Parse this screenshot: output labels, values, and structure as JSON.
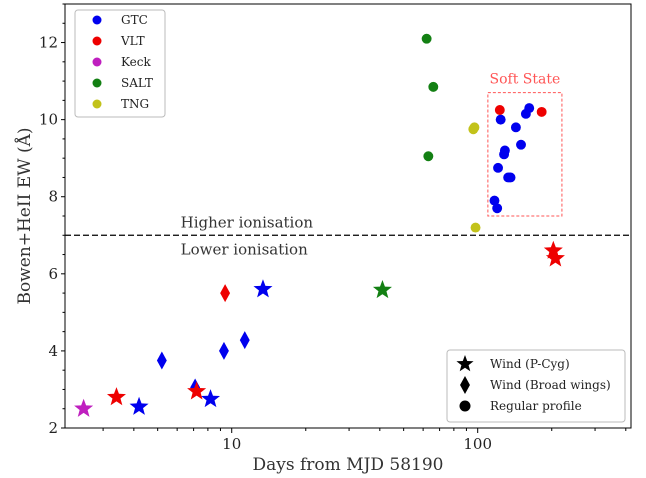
{
  "chart_data": {
    "type": "scatter",
    "xlabel": "Days from MJD 58190",
    "ylabel": "Bowen+HeII EW (Å)",
    "x_scale": "log",
    "xlim": [
      2.1,
      420
    ],
    "ylim": [
      2,
      13
    ],
    "x_ticks": [
      {
        "value": 10,
        "label": "10"
      },
      {
        "value": 100,
        "label": "100"
      }
    ],
    "y_ticks": [
      {
        "value": 2,
        "label": "2"
      },
      {
        "value": 4,
        "label": "4"
      },
      {
        "value": 6,
        "label": "6"
      },
      {
        "value": 8,
        "label": "8"
      },
      {
        "value": 10,
        "label": "10"
      },
      {
        "value": 12,
        "label": "12"
      }
    ],
    "grid": false,
    "colors": {
      "GTC": "#0000ee",
      "VLT": "#ee0000",
      "Keck": "#bf1fbf",
      "SALT": "#138013",
      "TNG": "#c2c21a"
    },
    "series": [
      {
        "name": "GTC",
        "points": [
          {
            "x": 4.2,
            "y": 2.55,
            "marker": "star"
          },
          {
            "x": 5.2,
            "y": 3.75,
            "marker": "diamond"
          },
          {
            "x": 7.1,
            "y": 3.05,
            "marker": "diamond"
          },
          {
            "x": 8.2,
            "y": 2.75,
            "marker": "star"
          },
          {
            "x": 9.3,
            "y": 4.0,
            "marker": "diamond"
          },
          {
            "x": 11.3,
            "y": 4.28,
            "marker": "diamond"
          },
          {
            "x": 13.4,
            "y": 5.6,
            "marker": "star"
          },
          {
            "x": 117,
            "y": 7.9,
            "marker": "circle"
          },
          {
            "x": 120,
            "y": 7.7,
            "marker": "circle"
          },
          {
            "x": 121,
            "y": 8.75,
            "marker": "circle"
          },
          {
            "x": 124,
            "y": 10.0,
            "marker": "circle"
          },
          {
            "x": 128,
            "y": 9.1,
            "marker": "circle"
          },
          {
            "x": 129,
            "y": 9.2,
            "marker": "circle"
          },
          {
            "x": 133,
            "y": 8.5,
            "marker": "circle"
          },
          {
            "x": 136,
            "y": 8.5,
            "marker": "circle"
          },
          {
            "x": 143,
            "y": 9.8,
            "marker": "circle"
          },
          {
            "x": 150,
            "y": 9.35,
            "marker": "circle"
          },
          {
            "x": 157,
            "y": 10.15,
            "marker": "circle"
          },
          {
            "x": 162,
            "y": 10.3,
            "marker": "circle"
          }
        ]
      },
      {
        "name": "VLT",
        "points": [
          {
            "x": 3.4,
            "y": 2.8,
            "marker": "star"
          },
          {
            "x": 7.2,
            "y": 2.95,
            "marker": "star"
          },
          {
            "x": 9.4,
            "y": 5.5,
            "marker": "diamond"
          },
          {
            "x": 123,
            "y": 10.25,
            "marker": "circle"
          },
          {
            "x": 182,
            "y": 10.2,
            "marker": "circle"
          },
          {
            "x": 203,
            "y": 6.6,
            "marker": "star"
          },
          {
            "x": 207,
            "y": 6.4,
            "marker": "star"
          }
        ]
      },
      {
        "name": "Keck",
        "points": [
          {
            "x": 2.5,
            "y": 2.5,
            "marker": "star"
          }
        ]
      },
      {
        "name": "SALT",
        "points": [
          {
            "x": 41,
            "y": 5.58,
            "marker": "star"
          },
          {
            "x": 62,
            "y": 12.1,
            "marker": "circle"
          },
          {
            "x": 63,
            "y": 9.05,
            "marker": "circle"
          },
          {
            "x": 66,
            "y": 10.85,
            "marker": "circle"
          }
        ]
      },
      {
        "name": "TNG",
        "points": [
          {
            "x": 96,
            "y": 9.75,
            "marker": "circle"
          },
          {
            "x": 97,
            "y": 9.8,
            "marker": "circle"
          },
          {
            "x": 98,
            "y": 7.2,
            "marker": "circle"
          }
        ]
      }
    ],
    "reference_line": {
      "y": 7,
      "style": "dashed",
      "label_above": "Higher ionisation",
      "label_below": "Lower ionisation",
      "label_x": 6.2
    },
    "region": {
      "label": "Soft State",
      "x_range": [
        110,
        220
      ],
      "y_range": [
        7.5,
        10.7
      ],
      "color": "#ff5555"
    },
    "legend_telescopes": {
      "placement": "top-left",
      "entries": [
        "GTC",
        "VLT",
        "Keck",
        "SALT",
        "TNG"
      ]
    },
    "legend_markers": {
      "placement": "bottom-right",
      "entries": [
        {
          "marker": "star",
          "label": "Wind (P-Cyg)"
        },
        {
          "marker": "diamond",
          "label": "Wind (Broad wings)"
        },
        {
          "marker": "circle",
          "label": "Regular profile"
        }
      ]
    }
  }
}
